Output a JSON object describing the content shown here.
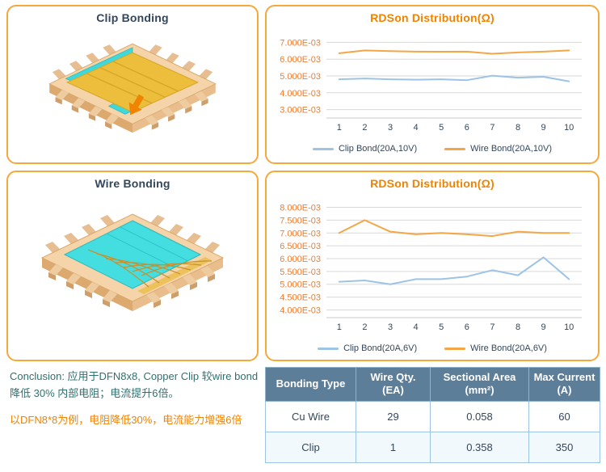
{
  "panels": {
    "clip": {
      "title": "Clip Bonding"
    },
    "wire": {
      "title": "Wire Bonding"
    }
  },
  "chart_data": [
    {
      "type": "line",
      "title": "RDSon Distribution(Ω)",
      "x": [
        "1",
        "2",
        "3",
        "4",
        "5",
        "6",
        "7",
        "8",
        "9",
        "10"
      ],
      "y_ticks": [
        "3.000E-03",
        "4.000E-03",
        "5.000E-03",
        "6.000E-03",
        "7.000E-03"
      ],
      "y_tick_values": [
        3,
        4,
        5,
        6,
        7
      ],
      "ylim": [
        2.5,
        7.5
      ],
      "grid": true,
      "legend_position": "bottom",
      "series": [
        {
          "name": "Clip Bond(20A,10V)",
          "color": "#9DC3E6",
          "values": [
            4.8,
            4.85,
            4.8,
            4.78,
            4.8,
            4.75,
            5.02,
            4.9,
            4.95,
            4.68
          ]
        },
        {
          "name": "Wire Bond(20A,10V)",
          "color": "#F4A646",
          "values": [
            6.35,
            6.52,
            6.48,
            6.45,
            6.44,
            6.45,
            6.32,
            6.4,
            6.45,
            6.52
          ]
        }
      ]
    },
    {
      "type": "line",
      "title": "RDSon Distribution(Ω)",
      "x": [
        "1",
        "2",
        "3",
        "4",
        "5",
        "6",
        "7",
        "8",
        "9",
        "10"
      ],
      "y_ticks": [
        "4.000E-03",
        "4.500E-03",
        "5.000E-03",
        "5.500E-03",
        "6.000E-03",
        "6.500E-03",
        "7.000E-03",
        "7.500E-03",
        "8.000E-03"
      ],
      "y_tick_values": [
        4,
        4.5,
        5,
        5.5,
        6,
        6.5,
        7,
        7.5,
        8
      ],
      "ylim": [
        3.7,
        8.3
      ],
      "grid": true,
      "legend_position": "bottom",
      "series": [
        {
          "name": "Clip Bond(20A,6V)",
          "color": "#9DC3E6",
          "values": [
            5.1,
            5.15,
            5.0,
            5.2,
            5.2,
            5.3,
            5.55,
            5.35,
            6.05,
            5.2
          ]
        },
        {
          "name": "Wire Bond(20A,6V)",
          "color": "#F4A646",
          "values": [
            7.0,
            7.5,
            7.05,
            6.95,
            7.0,
            6.95,
            6.88,
            7.05,
            7.0,
            7.0
          ]
        }
      ]
    }
  ],
  "conclusion": {
    "line1": "Conclusion: 应用于DFN8x8, Copper Clip 较wire bond",
    "line2": "降低 30% 内部电阻；电流提升6倍。",
    "line3": "以DFN8*8为例，电阻降低30%，电流能力增强6倍"
  },
  "table": {
    "headers": [
      {
        "line1": "Bonding Type",
        "line2": ""
      },
      {
        "line1": "Wire Qty.",
        "line2": "(EA)"
      },
      {
        "line1": "Sectional Area",
        "line2": "(mm²)"
      },
      {
        "line1": "Max Current",
        "line2": "(A)"
      }
    ],
    "rows": [
      [
        "Cu Wire",
        "29",
        "0.058",
        "60"
      ],
      [
        "Clip",
        "1",
        "0.358",
        "350"
      ]
    ]
  },
  "colors": {
    "panel_border": "#F7A83B",
    "chart_title": "#F08300",
    "y_tick_label": "#ED7D31",
    "x_tick_label": "#33475B",
    "gridline": "#D9D9D9",
    "axis_line": "#C9C9C9",
    "clip_bond_line": "#9DC3E6",
    "wire_bond_line": "#F4A646",
    "table_header_bg": "#5D7E98",
    "table_border": "#9DC3E6",
    "conclusion_teal": "#2F7070",
    "conclusion_orange": "#F08300"
  }
}
